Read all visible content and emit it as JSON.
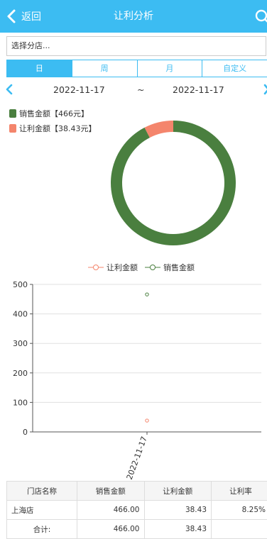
{
  "header": {
    "back_label": "返回",
    "title": "让利分析"
  },
  "store_select": {
    "placeholder": "选择分店..."
  },
  "tabs": [
    "日",
    "周",
    "月",
    "自定义"
  ],
  "date_range": {
    "start": "2022-11-17",
    "separator": "~",
    "end": "2022-11-17"
  },
  "pie": {
    "legend": [
      {
        "label": "销售金额【466元】",
        "color": "#4a7f3f"
      },
      {
        "label": "让利金额【38.43元】",
        "color": "#f4856c"
      }
    ]
  },
  "chart_data": [
    {
      "type": "pie",
      "labels": [
        "销售金额【466元】",
        "让利金额【38.43元】"
      ],
      "values": [
        466,
        38.43
      ],
      "colors": [
        "#4a7f3f",
        "#f4856c"
      ]
    },
    {
      "type": "scatter",
      "categories": [
        "2022-11-17"
      ],
      "series": [
        {
          "name": "让利金额",
          "values": [
            38.43
          ],
          "color": "#f4856c"
        },
        {
          "name": "销售金额",
          "values": [
            466
          ],
          "color": "#4a7f3f"
        }
      ],
      "yticks": [
        "0",
        "100",
        "200",
        "300",
        "400",
        "500"
      ],
      "ylim": [
        0,
        500
      ],
      "grid": true,
      "legend_position": "top"
    }
  ],
  "table": {
    "headers": [
      "门店名称",
      "销售金额",
      "让利金额",
      "让利率"
    ],
    "rows": [
      [
        "上海店",
        "466.00",
        "38.43",
        "8.25%"
      ],
      [
        "合计:",
        "466.00",
        "38.43",
        ""
      ]
    ]
  }
}
